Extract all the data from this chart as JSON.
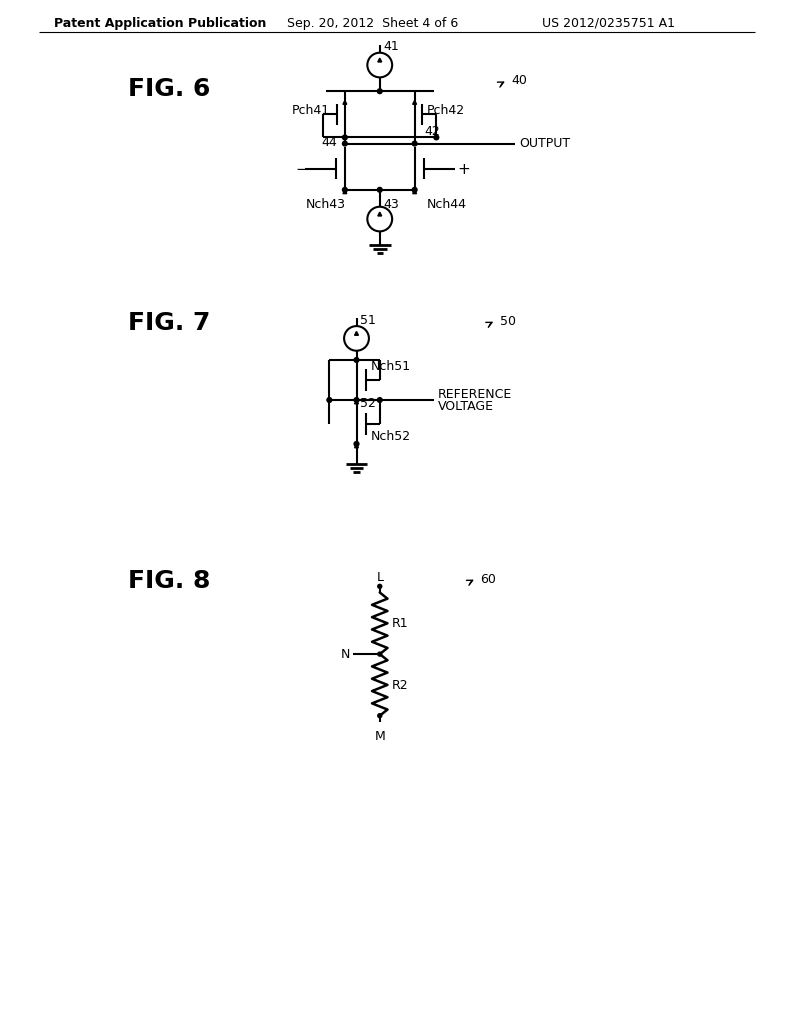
{
  "bg_color": "#ffffff",
  "header_left": "Patent Application Publication",
  "header_center": "Sep. 20, 2012  Sheet 4 of 6",
  "header_right": "US 2012/0235751 A1",
  "fig6_label": "FIG. 6",
  "fig7_label": "FIG. 7",
  "fig8_label": "FIG. 8",
  "line_color": "#000000",
  "line_width": 1.5,
  "font_size_header": 9,
  "font_size_fig": 18,
  "font_size_small": 9
}
